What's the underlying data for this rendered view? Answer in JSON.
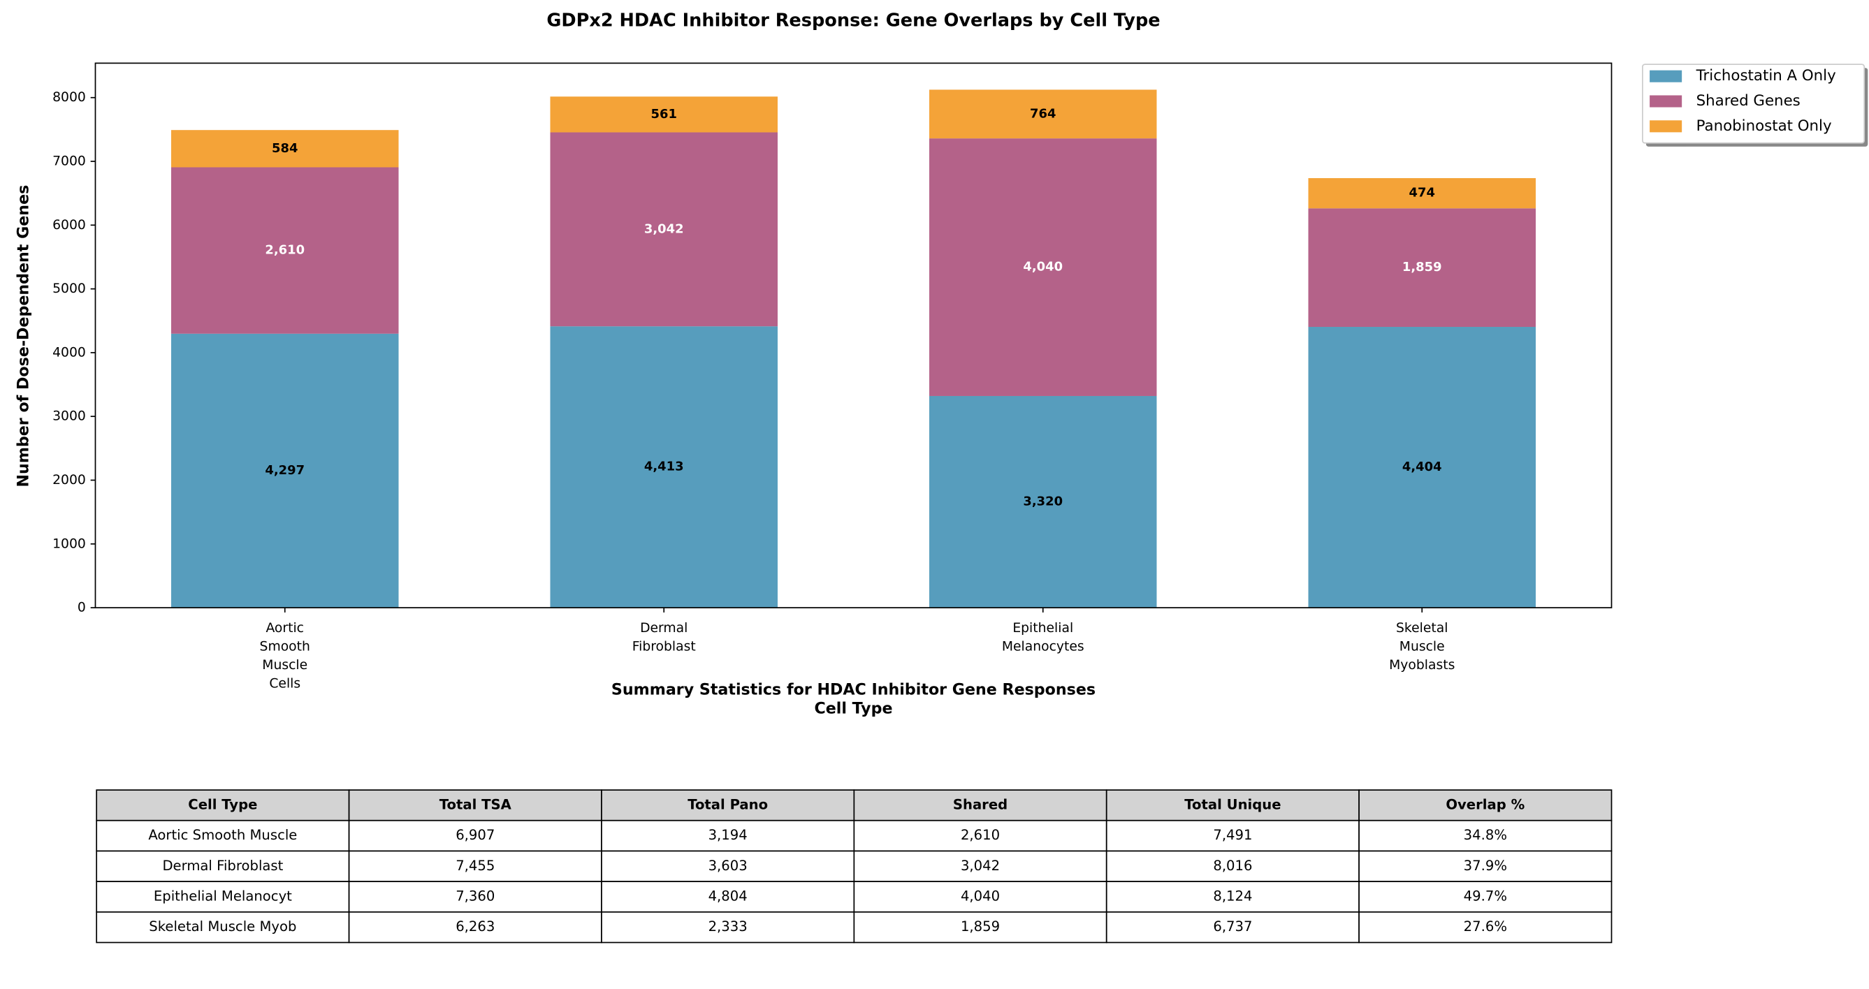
{
  "chart_data": {
    "type": "stacked_bar",
    "title": "GDPx2 HDAC Inhibitor Response: Gene Overlaps by Cell Type",
    "xlabel": "Cell Type",
    "ylabel": "Number of Dose-Dependent Genes",
    "categories": [
      "Aortic\nSmooth\nMuscle\nCells",
      "Dermal\nFibroblast",
      "Epithelial\nMelanocytes",
      "Skeletal\nMuscle\nMyoblasts"
    ],
    "series": [
      {
        "name": "Trichostatin A Only",
        "color": "#579dbd",
        "label_color": "#000000",
        "values": [
          4297,
          4413,
          3320,
          4404
        ],
        "value_labels": [
          "4,297",
          "4,413",
          "3,320",
          "4,404"
        ]
      },
      {
        "name": "Shared Genes",
        "color": "#b46289",
        "label_color": "#ffffff",
        "values": [
          2610,
          3042,
          4040,
          1859
        ],
        "value_labels": [
          "2,610",
          "3,042",
          "4,040",
          "1,859"
        ]
      },
      {
        "name": "Panobinostat Only",
        "color": "#f4a338",
        "label_color": "#000000",
        "values": [
          584,
          561,
          764,
          474
        ],
        "value_labels": [
          "584",
          "561",
          "764",
          "474"
        ]
      }
    ],
    "ylim": [
      0,
      8540
    ],
    "yticks": [
      0,
      1000,
      2000,
      3000,
      4000,
      5000,
      6000,
      7000,
      8000
    ],
    "grid": false,
    "legend": "outside-upper-right"
  },
  "table": {
    "title": "Summary Statistics for HDAC Inhibitor Gene Responses",
    "columns": [
      "Cell Type",
      "Total TSA",
      "Total Pano",
      "Shared",
      "Total Unique",
      "Overlap %"
    ],
    "rows": [
      [
        "Aortic Smooth Muscle",
        "6,907",
        "3,194",
        "2,610",
        "7,491",
        "34.8%"
      ],
      [
        "Dermal Fibroblast",
        "7,455",
        "3,603",
        "3,042",
        "8,016",
        "37.9%"
      ],
      [
        "Epithelial Melanocyt",
        "7,360",
        "4,804",
        "4,040",
        "8,124",
        "49.7%"
      ],
      [
        "Skeletal Muscle Myob",
        "6,263",
        "2,333",
        "1,859",
        "6,737",
        "27.6%"
      ]
    ]
  }
}
